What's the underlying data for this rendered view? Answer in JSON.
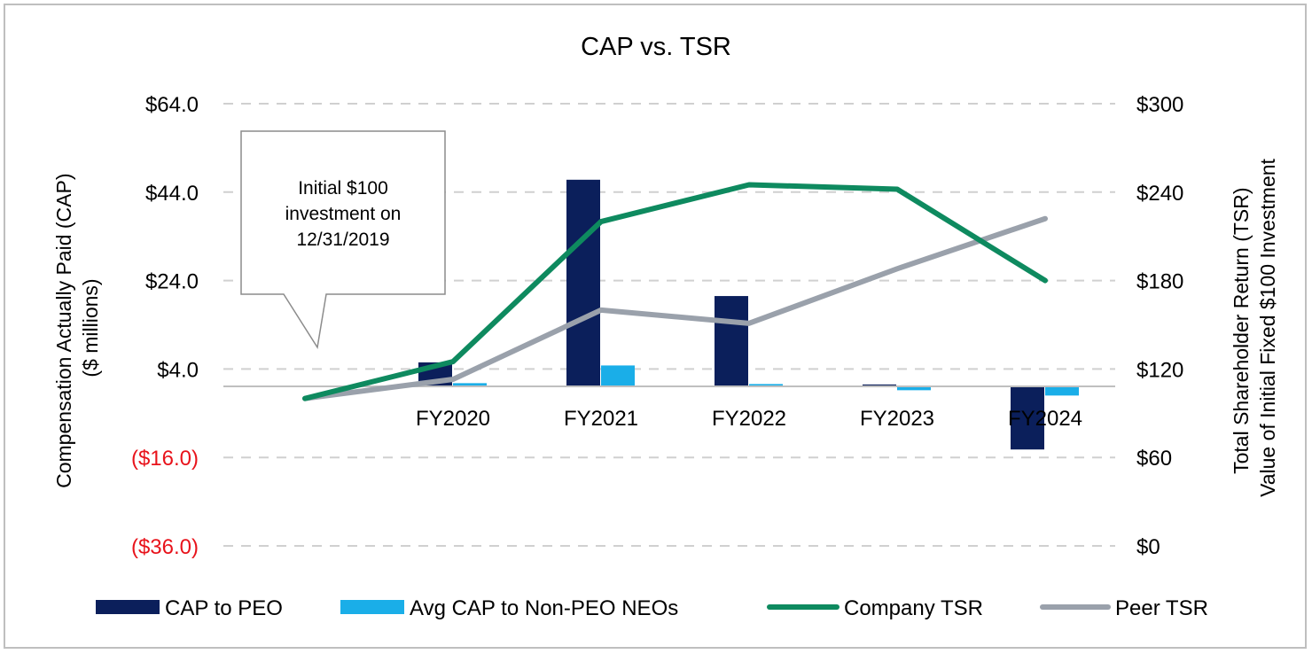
{
  "chart_data": {
    "type": "bar+line",
    "title": "CAP vs. TSR",
    "categories": [
      "",
      "FY2020",
      "FY2021",
      "FY2022",
      "FY2023",
      "FY2024"
    ],
    "y_left": {
      "label_lines": [
        "Compensation  Actually Paid (CAP)",
        "($ millions)"
      ],
      "ticks": [
        64,
        44,
        24,
        4,
        -16,
        -36
      ],
      "tick_labels": [
        "$64.0",
        "$44.0",
        "$24.0",
        "$4.0",
        "($16.0)",
        "($36.0)"
      ],
      "range": [
        -36,
        64
      ]
    },
    "y_right": {
      "label_lines": [
        "Total  Shareholder Return  (TSR)",
        "Value of Initial Fixed $100 Investment"
      ],
      "ticks": [
        300,
        240,
        180,
        120,
        60,
        0
      ],
      "tick_labels": [
        "$300",
        "$240",
        "$180",
        "$120",
        "$60",
        "$0"
      ],
      "range": [
        0,
        300
      ]
    },
    "bar_series": [
      {
        "name": "CAP to PEO",
        "color": "#0b1f5b",
        "axis": "left",
        "values": [
          null,
          5.5,
          46.8,
          20.5,
          0.5,
          -14.2
        ]
      },
      {
        "name": "Avg CAP to Non-PEO NEOs",
        "color": "#1aaee8",
        "axis": "left",
        "values": [
          null,
          0.8,
          4.8,
          0.6,
          -0.8,
          -2.0
        ]
      }
    ],
    "line_series": [
      {
        "name": "Company TSR",
        "color": "#0e8a5f",
        "axis": "right",
        "values": [
          100,
          125,
          220,
          245,
          242,
          180
        ]
      },
      {
        "name": "Peer TSR",
        "color": "#9aa1ab",
        "axis": "right",
        "values": [
          100,
          113,
          160,
          151,
          188,
          222
        ]
      }
    ],
    "legend_position": "bottom",
    "grid": "dashed horizontal",
    "annotation": {
      "lines": [
        "Initial  $100",
        "investment on",
        "12/31/2019"
      ],
      "negative_tick_color": "#e8131b"
    }
  }
}
